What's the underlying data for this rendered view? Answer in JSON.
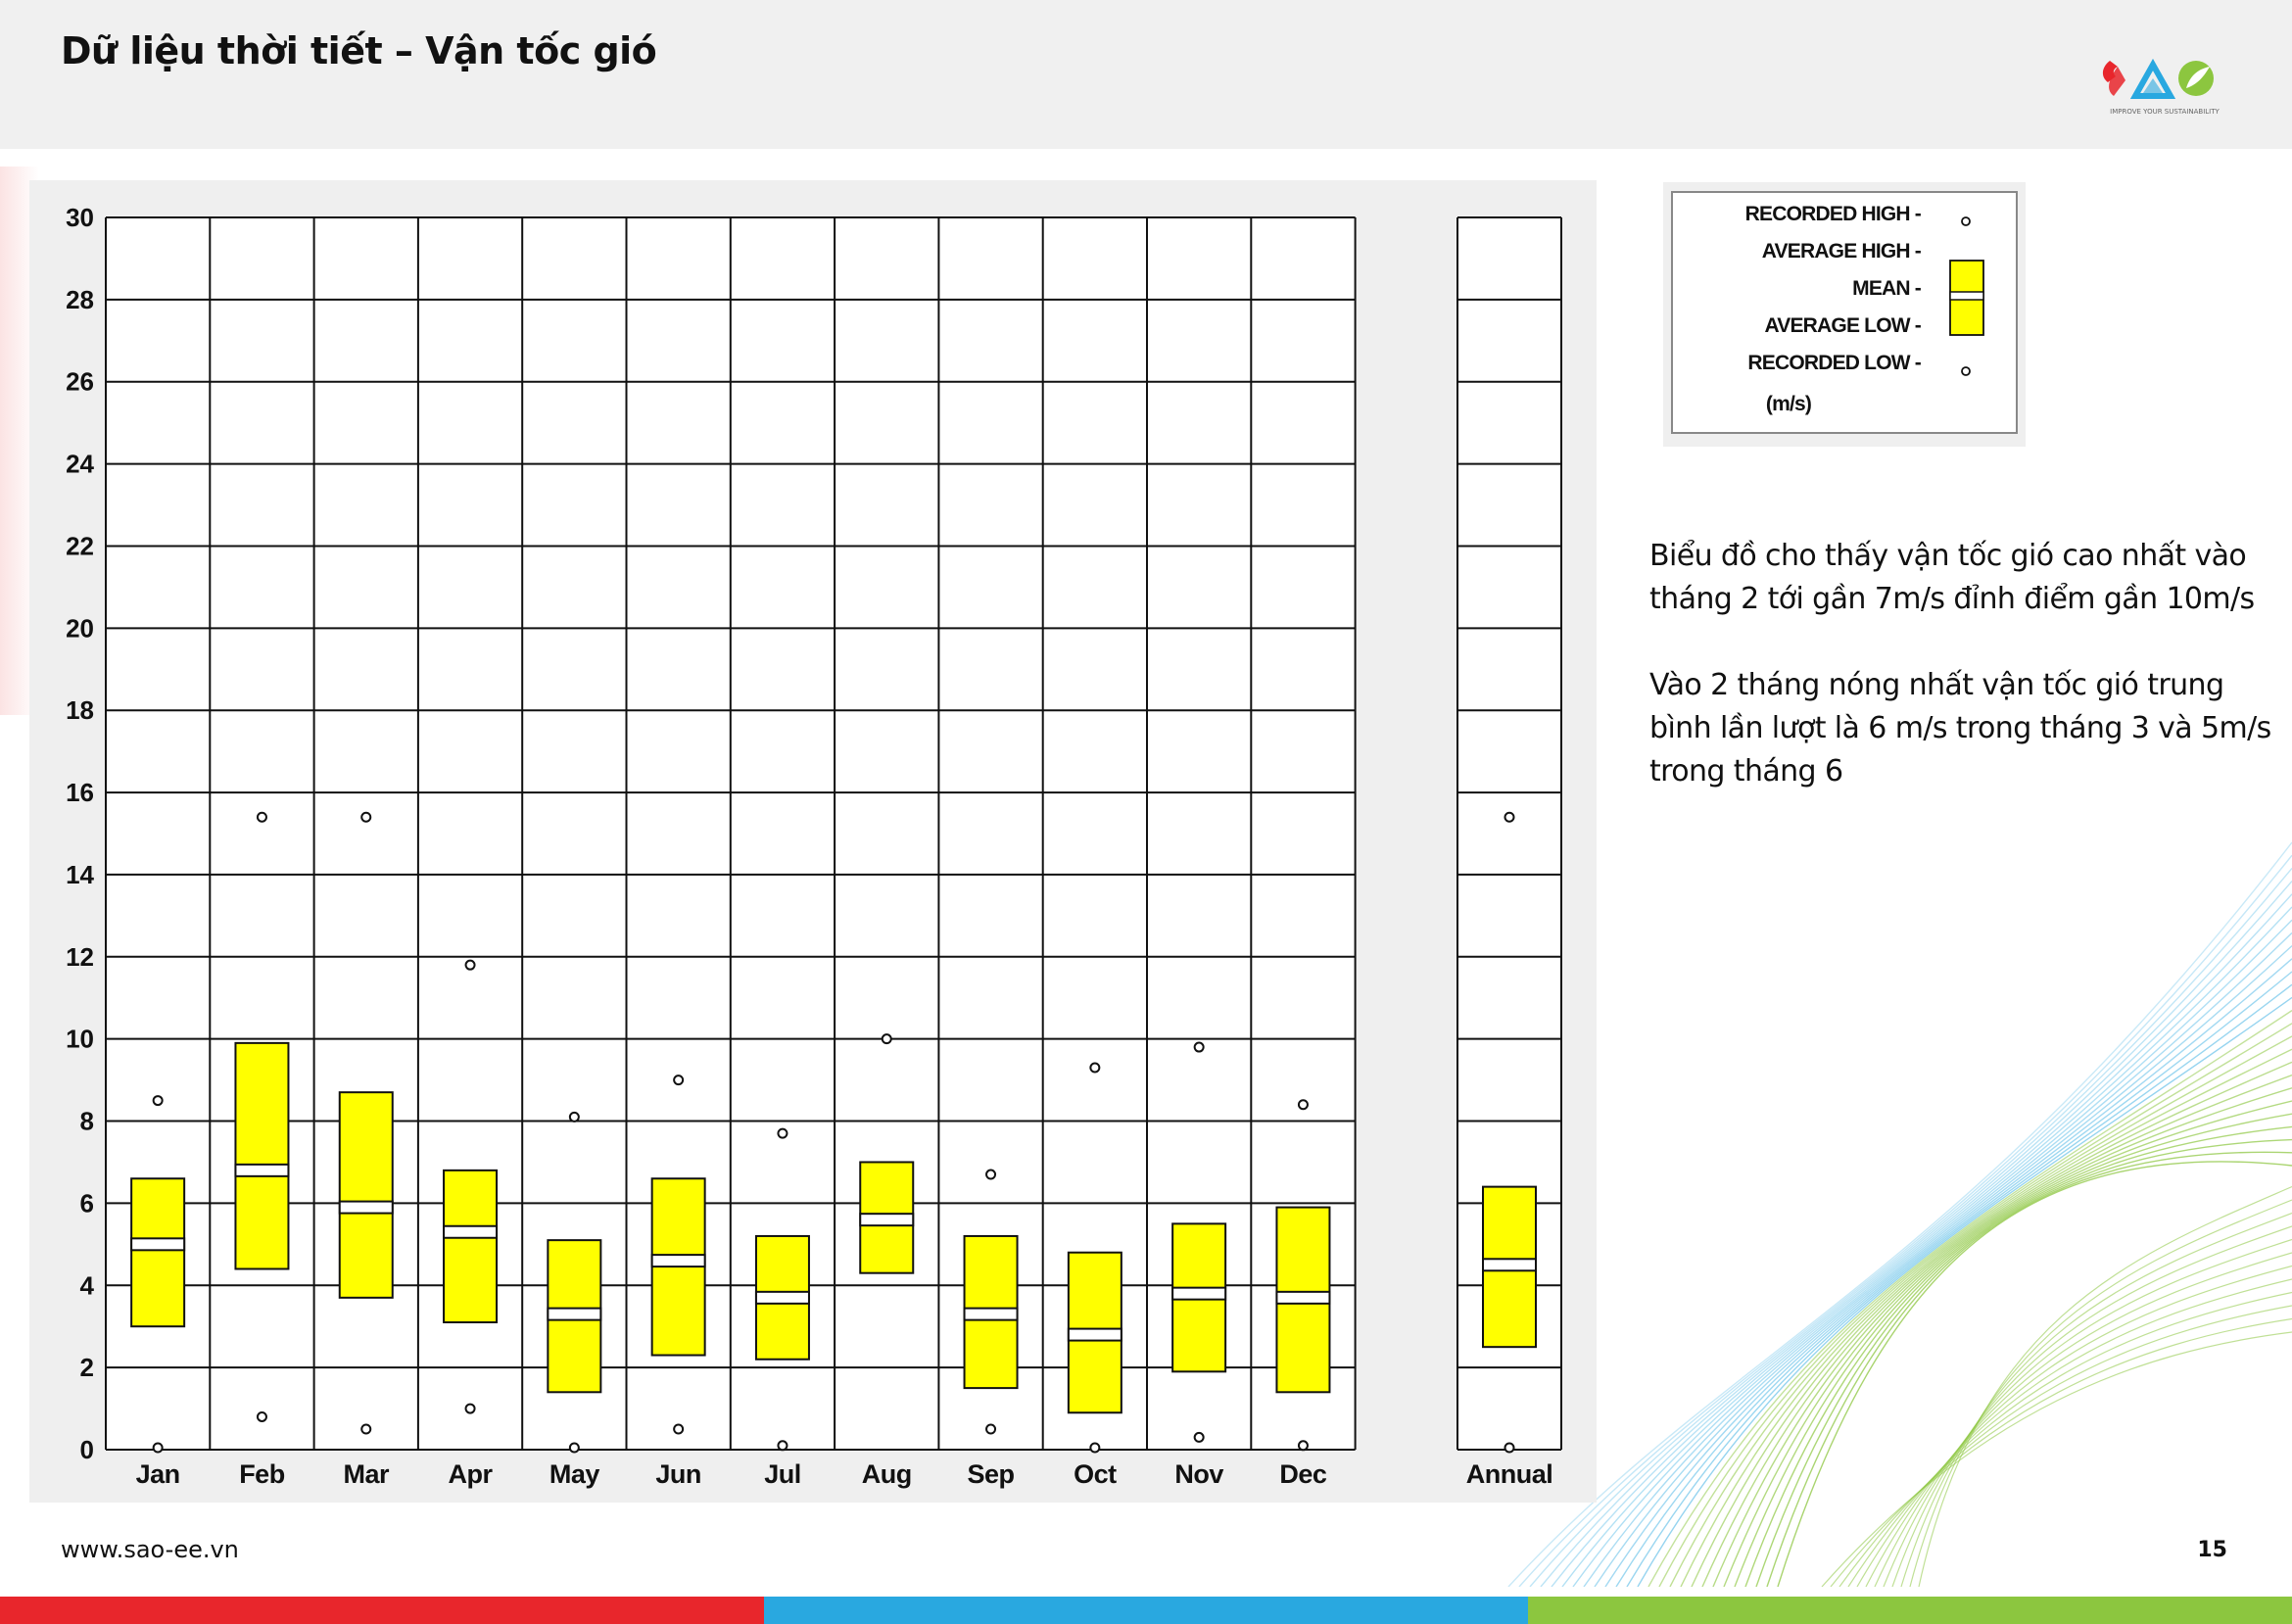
{
  "header": {
    "title": "Dữ liệu thời tiết – Vận tốc gió",
    "logo_text": "SAO",
    "logo_tagline": "IMPROVE YOUR SUSTAINABILITY"
  },
  "colors": {
    "box_fill": "#ffff00",
    "red": "#e8262c",
    "blue": "#29a8e0",
    "green": "#8cc63f"
  },
  "legend": {
    "recorded_high": "RECORDED HIGH -",
    "average_high": "AVERAGE HIGH -",
    "mean": "MEAN -",
    "average_low": "AVERAGE LOW -",
    "recorded_low": "RECORDED LOW -",
    "unit": "(m/s)"
  },
  "chart_data": {
    "type": "box",
    "ylim": [
      0,
      30
    ],
    "yticks": [
      0,
      2,
      4,
      6,
      8,
      10,
      12,
      14,
      16,
      18,
      20,
      22,
      24,
      26,
      28,
      30
    ],
    "grid": true,
    "legend_position": "right",
    "categories": [
      "Jan",
      "Feb",
      "Mar",
      "Apr",
      "May",
      "Jun",
      "Jul",
      "Aug",
      "Sep",
      "Oct",
      "Nov",
      "Dec"
    ],
    "recorded_high": [
      8.5,
      15.4,
      15.4,
      11.8,
      8.1,
      9.0,
      7.7,
      10.0,
      6.7,
      9.3,
      9.8,
      8.4
    ],
    "average_high": [
      6.6,
      9.9,
      8.7,
      6.8,
      5.1,
      6.6,
      5.2,
      7.0,
      5.2,
      4.8,
      5.5,
      5.9
    ],
    "mean": [
      5.0,
      6.8,
      5.9,
      5.3,
      3.3,
      4.6,
      3.7,
      5.6,
      3.3,
      2.8,
      3.8,
      3.7
    ],
    "average_low": [
      3.0,
      4.4,
      3.7,
      3.1,
      1.4,
      2.3,
      2.2,
      4.3,
      1.5,
      0.9,
      1.9,
      1.4
    ],
    "recorded_low": [
      0.0,
      0.8,
      0.5,
      1.0,
      0.0,
      0.5,
      0.1,
      null,
      0.5,
      0.0,
      0.3,
      0.1
    ],
    "annual": {
      "label": "Annual",
      "recorded_high": 15.4,
      "average_high": 6.4,
      "mean": 4.5,
      "average_low": 2.5,
      "recorded_low": 0.0
    }
  },
  "note": {
    "paragraph1": "Biểu đồ cho thấy vận tốc gió cao nhất vào tháng 2 tới gần 7m/s đỉnh điểm gần 10m/s",
    "paragraph2": "Vào 2 tháng nóng nhất vận tốc gió trung bình lần lượt là 6 m/s trong tháng 3 và 5m/s trong tháng 6"
  },
  "footer": {
    "url": "www.sao-ee.vn",
    "page_number": "15"
  }
}
